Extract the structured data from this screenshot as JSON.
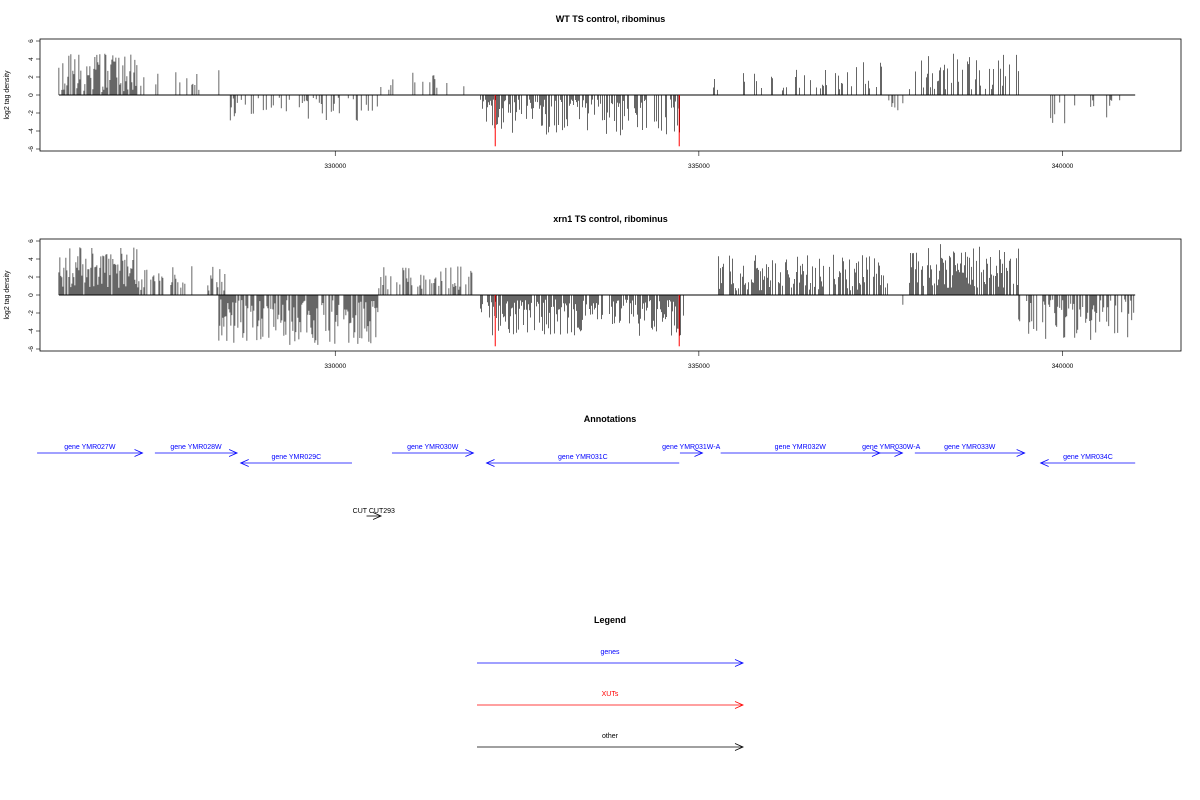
{
  "colors": {
    "gene": "#0000ff",
    "xut": "#ff0000",
    "other": "#000000",
    "bar": "#000000",
    "highlight": "#ff0000"
  },
  "chart_data": [
    {
      "type": "bar",
      "title": "WT TS control, ribominus",
      "ylabel": "log2 tag density",
      "xlabel": "",
      "xlim": [
        325940,
        341630
      ],
      "ylim": [
        -6,
        6
      ],
      "xticks": [
        330000,
        335000,
        340000
      ],
      "yticks": [
        6,
        4,
        2,
        0,
        -2,
        -4,
        -6
      ],
      "grid": false,
      "highlights": [
        {
          "x": 332200,
          "y": -5.7
        },
        {
          "x": 334730,
          "y": -5.7
        }
      ],
      "segments": [
        {
          "x0": 326200,
          "x1": 327300,
          "sign": 1,
          "density": 0.75,
          "min": 0.3,
          "max": 4.6
        },
        {
          "x0": 327300,
          "x1": 328500,
          "sign": 1,
          "density": 0.12,
          "min": 0.5,
          "max": 2.8
        },
        {
          "x0": 328500,
          "x1": 330600,
          "sign": -1,
          "density": 0.35,
          "min": 0.3,
          "max": 2.9
        },
        {
          "x0": 330600,
          "x1": 331800,
          "sign": 1,
          "density": 0.1,
          "min": 0.5,
          "max": 2.6
        },
        {
          "x0": 332000,
          "x1": 334800,
          "sign": -1,
          "density": 0.6,
          "min": 0.5,
          "max": 4.5
        },
        {
          "x0": 335200,
          "x1": 337000,
          "sign": 1,
          "density": 0.2,
          "min": 0.5,
          "max": 2.8
        },
        {
          "x0": 337000,
          "x1": 337600,
          "sign": 1,
          "density": 0.25,
          "min": 0.5,
          "max": 3.8
        },
        {
          "x0": 337600,
          "x1": 337900,
          "sign": -1,
          "density": 0.08,
          "min": 0.5,
          "max": 2.0
        },
        {
          "x0": 337900,
          "x1": 339400,
          "sign": 1,
          "density": 0.45,
          "min": 0.5,
          "max": 4.6
        },
        {
          "x0": 339400,
          "x1": 341000,
          "sign": -1,
          "density": 0.2,
          "min": 0.5,
          "max": 3.4
        }
      ]
    },
    {
      "type": "bar",
      "title": "xrn1 TS control, ribominus",
      "ylabel": "log2 tag density",
      "xlabel": "",
      "xlim": [
        325940,
        341630
      ],
      "ylim": [
        -6,
        6
      ],
      "xticks": [
        330000,
        335000,
        340000
      ],
      "yticks": [
        6,
        4,
        2,
        0,
        -2,
        -4,
        -6
      ],
      "grid": false,
      "highlights": [
        {
          "x": 332200,
          "y": -5.7
        },
        {
          "x": 334730,
          "y": -5.7
        }
      ],
      "segments": [
        {
          "x0": 326200,
          "x1": 327300,
          "sign": 1,
          "density": 0.95,
          "min": 0.8,
          "max": 5.3
        },
        {
          "x0": 327300,
          "x1": 328500,
          "sign": 1,
          "density": 0.35,
          "min": 0.5,
          "max": 3.2
        },
        {
          "x0": 328400,
          "x1": 330600,
          "sign": -1,
          "density": 0.75,
          "min": 0.5,
          "max": 5.6
        },
        {
          "x0": 330600,
          "x1": 331900,
          "sign": 1,
          "density": 0.5,
          "min": 0.5,
          "max": 3.2
        },
        {
          "x0": 332000,
          "x1": 334800,
          "sign": -1,
          "density": 0.8,
          "min": 0.5,
          "max": 4.6
        },
        {
          "x0": 335200,
          "x1": 337600,
          "sign": 1,
          "density": 0.6,
          "min": 0.5,
          "max": 4.5
        },
        {
          "x0": 337600,
          "x1": 337900,
          "sign": -1,
          "density": 0.1,
          "min": 0.5,
          "max": 2.0
        },
        {
          "x0": 337900,
          "x1": 339400,
          "sign": 1,
          "density": 0.85,
          "min": 0.8,
          "max": 5.7
        },
        {
          "x0": 339400,
          "x1": 341000,
          "sign": -1,
          "density": 0.6,
          "min": 0.5,
          "max": 5.3
        }
      ]
    }
  ],
  "annotations": {
    "title": "Annotations",
    "genes": [
      {
        "label": "gene YMR027W",
        "start": 325900,
        "end": 327350,
        "strand": "+",
        "row": 1
      },
      {
        "label": "gene YMR028W",
        "start": 327520,
        "end": 328650,
        "strand": "+",
        "row": 1
      },
      {
        "label": "gene YMR029C",
        "start": 328700,
        "end": 330230,
        "strand": "-",
        "row": 2
      },
      {
        "label": "gene YMR030W",
        "start": 330780,
        "end": 331900,
        "strand": "+",
        "row": 1
      },
      {
        "label": "gene YMR031C",
        "start": 332080,
        "end": 334730,
        "strand": "-",
        "row": 2
      },
      {
        "label": "gene YMR031W-A",
        "start": 334740,
        "end": 335050,
        "strand": "+",
        "row": 1
      },
      {
        "label": "gene YMR032W",
        "start": 335300,
        "end": 337490,
        "strand": "+",
        "row": 1
      },
      {
        "label": "gene YMR030W-A",
        "start": 337490,
        "end": 337800,
        "strand": "+",
        "row": 1
      },
      {
        "label": "gene YMR033W",
        "start": 337970,
        "end": 339480,
        "strand": "+",
        "row": 1
      },
      {
        "label": "gene YMR034C",
        "start": 339700,
        "end": 341000,
        "strand": "-",
        "row": 2
      }
    ],
    "others": [
      {
        "label": "CUT CUT293",
        "start": 330430,
        "end": 330630,
        "strand": "+"
      }
    ]
  },
  "legend": {
    "title": "Legend",
    "items": [
      {
        "label": "genes",
        "color": "#0000ff"
      },
      {
        "label": "XUTs",
        "color": "#ff0000"
      },
      {
        "label": "other",
        "color": "#000000"
      }
    ]
  }
}
